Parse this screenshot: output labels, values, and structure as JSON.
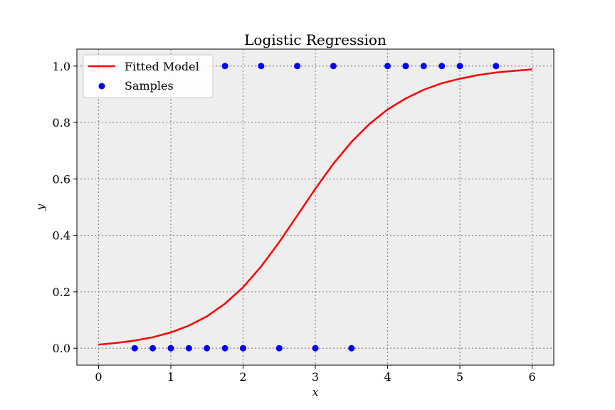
{
  "chart_data": {
    "type": "scatter",
    "title": "Logistic Regression",
    "xlabel": "x",
    "ylabel": "y",
    "xlim": [
      -0.3,
      6.3
    ],
    "ylim": [
      -0.06,
      1.06
    ],
    "xticks": [
      0,
      1,
      2,
      3,
      4,
      5,
      6
    ],
    "yticks": [
      0.0,
      0.2,
      0.4,
      0.6,
      0.8,
      1.0
    ],
    "ytick_labels": [
      "0.0",
      "0.2",
      "0.4",
      "0.6",
      "0.8",
      "1.0"
    ],
    "grid": true,
    "legend_position": "top-left",
    "background_color": "#eeeeee",
    "series": [
      {
        "name": "Fitted Model",
        "kind": "line",
        "color": "#ff0000",
        "x": [
          0,
          0.25,
          0.5,
          0.75,
          1.0,
          1.25,
          1.5,
          1.75,
          2.0,
          2.25,
          2.5,
          2.75,
          3.0,
          3.25,
          3.5,
          3.75,
          4.0,
          4.25,
          4.5,
          4.75,
          5.0,
          5.25,
          5.5,
          5.75,
          6.0
        ],
        "y": [
          0.013,
          0.019,
          0.027,
          0.039,
          0.056,
          0.08,
          0.113,
          0.158,
          0.216,
          0.29,
          0.376,
          0.47,
          0.565,
          0.654,
          0.731,
          0.795,
          0.846,
          0.885,
          0.916,
          0.939,
          0.955,
          0.968,
          0.977,
          0.983,
          0.988
        ]
      },
      {
        "name": "Samples",
        "kind": "scatter",
        "color": "#0000ff",
        "x": [
          0.5,
          0.75,
          1.0,
          1.25,
          1.5,
          1.75,
          2.0,
          2.5,
          3.0,
          3.5,
          1.75,
          2.25,
          2.75,
          3.25,
          4.0,
          4.25,
          4.5,
          4.75,
          5.0,
          5.5
        ],
        "y": [
          0,
          0,
          0,
          0,
          0,
          0,
          0,
          0,
          0,
          0,
          1,
          1,
          1,
          1,
          1,
          1,
          1,
          1,
          1,
          1
        ]
      }
    ]
  }
}
